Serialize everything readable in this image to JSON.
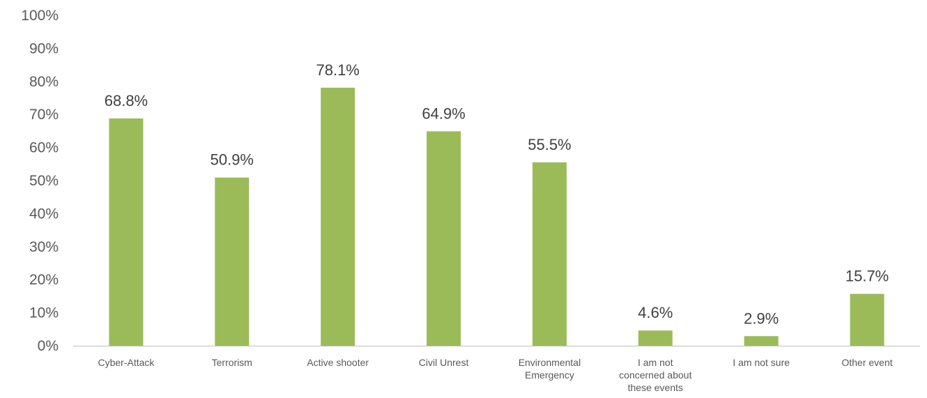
{
  "chart_data": {
    "type": "bar",
    "title": "",
    "xlabel": "",
    "ylabel": "",
    "categories": [
      [
        "Cyber-Attack"
      ],
      [
        "Terrorism"
      ],
      [
        "Active shooter"
      ],
      [
        "Civil Unrest"
      ],
      [
        "Environmental",
        "Emergency"
      ],
      [
        "I am not",
        "concerned about",
        "these events"
      ],
      [
        "I am not sure"
      ],
      [
        "Other event"
      ]
    ],
    "values": [
      68.8,
      50.9,
      78.1,
      64.9,
      55.5,
      4.6,
      2.9,
      15.7
    ],
    "data_labels": [
      "68.8%",
      "50.9%",
      "78.1%",
      "64.9%",
      "55.5%",
      "4.6%",
      "2.9%",
      "15.7%"
    ],
    "ylim": [
      0,
      100
    ],
    "yticks": [
      0,
      10,
      20,
      30,
      40,
      50,
      60,
      70,
      80,
      90,
      100
    ],
    "ytick_labels": [
      "0%",
      "10%",
      "20%",
      "30%",
      "40%",
      "50%",
      "60%",
      "70%",
      "80%",
      "90%",
      "100%"
    ],
    "grid": false,
    "legend": "none",
    "bar_color": "#9BBB59",
    "axis_color": "#BFBFBF"
  }
}
